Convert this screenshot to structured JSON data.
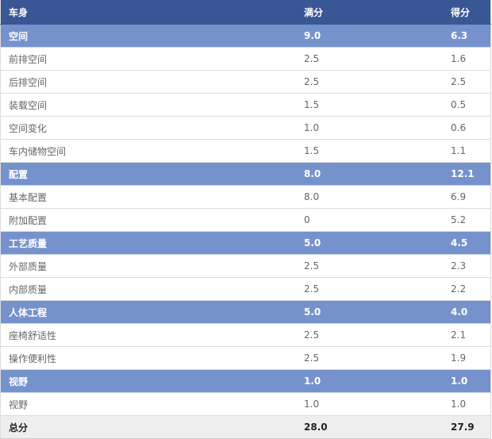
{
  "header": {
    "name": "车身",
    "full": "满分",
    "score": "得分"
  },
  "rows": [
    {
      "type": "cat",
      "name": "空间",
      "full": "9.0",
      "score": "6.3"
    },
    {
      "type": "item",
      "name": "前排空间",
      "full": "2.5",
      "score": "1.6"
    },
    {
      "type": "item",
      "name": "后排空间",
      "full": "2.5",
      "score": "2.5"
    },
    {
      "type": "item",
      "name": "装载空间",
      "full": "1.5",
      "score": "0.5"
    },
    {
      "type": "item",
      "name": "空间变化",
      "full": "1.0",
      "score": "0.6"
    },
    {
      "type": "item",
      "name": "车内储物空间",
      "full": "1.5",
      "score": "1.1"
    },
    {
      "type": "cat",
      "name": "配置",
      "full": "8.0",
      "score": "12.1"
    },
    {
      "type": "item",
      "name": "基本配置",
      "full": "8.0",
      "score": "6.9"
    },
    {
      "type": "item",
      "name": "附加配置",
      "full": "0",
      "score": "5.2"
    },
    {
      "type": "cat",
      "name": "工艺质量",
      "full": "5.0",
      "score": "4.5"
    },
    {
      "type": "item",
      "name": "外部质量",
      "full": "2.5",
      "score": "2.3"
    },
    {
      "type": "item",
      "name": "内部质量",
      "full": "2.5",
      "score": "2.2"
    },
    {
      "type": "cat",
      "name": "人体工程",
      "full": "5.0",
      "score": "4.0"
    },
    {
      "type": "item",
      "name": "座椅舒适性",
      "full": "2.5",
      "score": "2.1"
    },
    {
      "type": "item",
      "name": "操作便利性",
      "full": "2.5",
      "score": "1.9"
    },
    {
      "type": "cat",
      "name": "视野",
      "full": "1.0",
      "score": "1.0"
    },
    {
      "type": "item",
      "name": "视野",
      "full": "1.0",
      "score": "1.0"
    }
  ],
  "total": {
    "name": "总分",
    "full": "28.0",
    "score": "27.9"
  },
  "colors": {
    "header_bg": "#3a5795",
    "category_bg": "#7592cc",
    "total_bg": "#eeeeee"
  }
}
